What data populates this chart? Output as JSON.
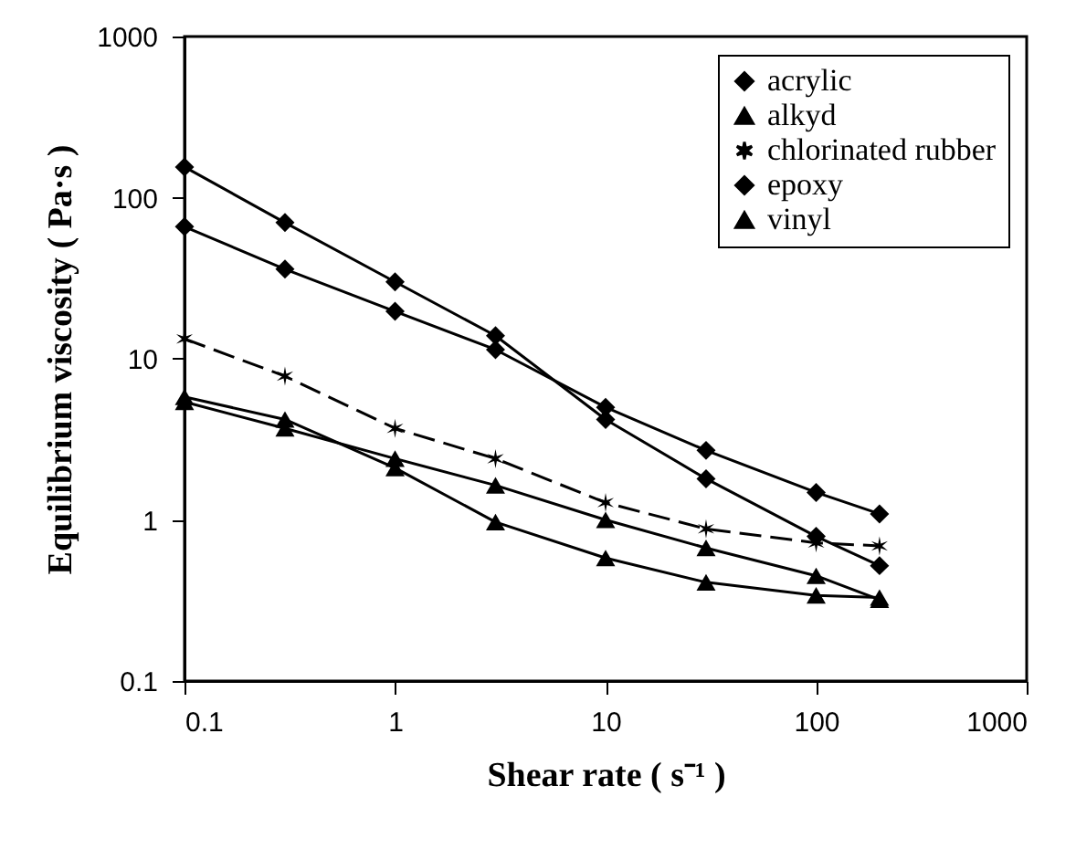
{
  "chart_data": {
    "type": "line",
    "xlabel": "Shear rate ( s⁻¹ )",
    "ylabel": "Equilibrium viscosity ( Pa·s )",
    "x": [
      0.1,
      0.3,
      1,
      3,
      10,
      30,
      100,
      200
    ],
    "series": [
      {
        "name": "acrylic",
        "color": "#000000",
        "marker": "diamond",
        "line_style": "solid",
        "values": [
          66,
          36,
          19.7,
          11.4,
          5.0,
          2.7,
          1.48,
          1.09
        ]
      },
      {
        "name": "alkyd",
        "color": "#000000",
        "marker": "triangle",
        "line_style": "solid",
        "values": [
          5.8,
          4.2,
          2.1,
          0.97,
          0.58,
          0.41,
          0.34,
          0.33
        ]
      },
      {
        "name": "chlorinated rubber",
        "color": "#000000",
        "marker": "cross",
        "line_style": "dashed",
        "values": [
          13.3,
          7.8,
          3.7,
          2.4,
          1.28,
          0.88,
          0.72,
          0.69
        ]
      },
      {
        "name": "epoxy",
        "color": "#000000",
        "marker": "diamond",
        "line_style": "solid",
        "values": [
          155,
          70,
          30,
          13.9,
          4.2,
          1.8,
          0.79,
          0.52
        ]
      },
      {
        "name": "vinyl",
        "color": "#000000",
        "marker": "triangle",
        "line_style": "solid",
        "values": [
          5.4,
          3.7,
          2.4,
          1.64,
          1.0,
          0.67,
          0.45,
          0.32
        ]
      }
    ],
    "log": "xy",
    "xlim": [
      0.1,
      1000
    ],
    "xticks": [
      0.1,
      1,
      10,
      100,
      1000
    ],
    "ylim": [
      0.1,
      1000
    ],
    "yticks": [
      0.1,
      1,
      10,
      100,
      1000
    ],
    "grid": false,
    "legend": "top right"
  }
}
